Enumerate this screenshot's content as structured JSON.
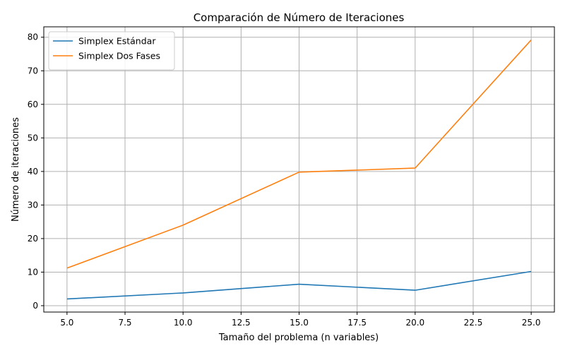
{
  "chart_data": {
    "type": "line",
    "title": "Comparación de Número de Iteraciones",
    "xlabel": "Tamaño del problema (n variables)",
    "ylabel": "Número de iteraciones",
    "x": [
      5,
      10,
      15,
      20,
      25
    ],
    "xlim": [
      4.0,
      26.0
    ],
    "ylim": [
      -1.9,
      83.1
    ],
    "xticks": [
      5.0,
      7.5,
      10.0,
      12.5,
      15.0,
      17.5,
      20.0,
      22.5,
      25.0
    ],
    "xtick_labels": [
      "5.0",
      "7.5",
      "10.0",
      "12.5",
      "15.0",
      "17.5",
      "20.0",
      "22.5",
      "25.0"
    ],
    "yticks": [
      0,
      10,
      20,
      30,
      40,
      50,
      60,
      70,
      80
    ],
    "ytick_labels": [
      "0",
      "10",
      "20",
      "30",
      "40",
      "50",
      "60",
      "70",
      "80"
    ],
    "grid": true,
    "legend_position": "top-left",
    "series": [
      {
        "name": "Simplex Estándar",
        "color": "#1f77b4",
        "values": [
          2.0,
          3.8,
          6.4,
          4.6,
          10.2
        ]
      },
      {
        "name": "Simplex Dos Fases",
        "color": "#ff7f0e",
        "values": [
          11.2,
          24.0,
          39.8,
          41.0,
          79.2
        ]
      }
    ]
  }
}
